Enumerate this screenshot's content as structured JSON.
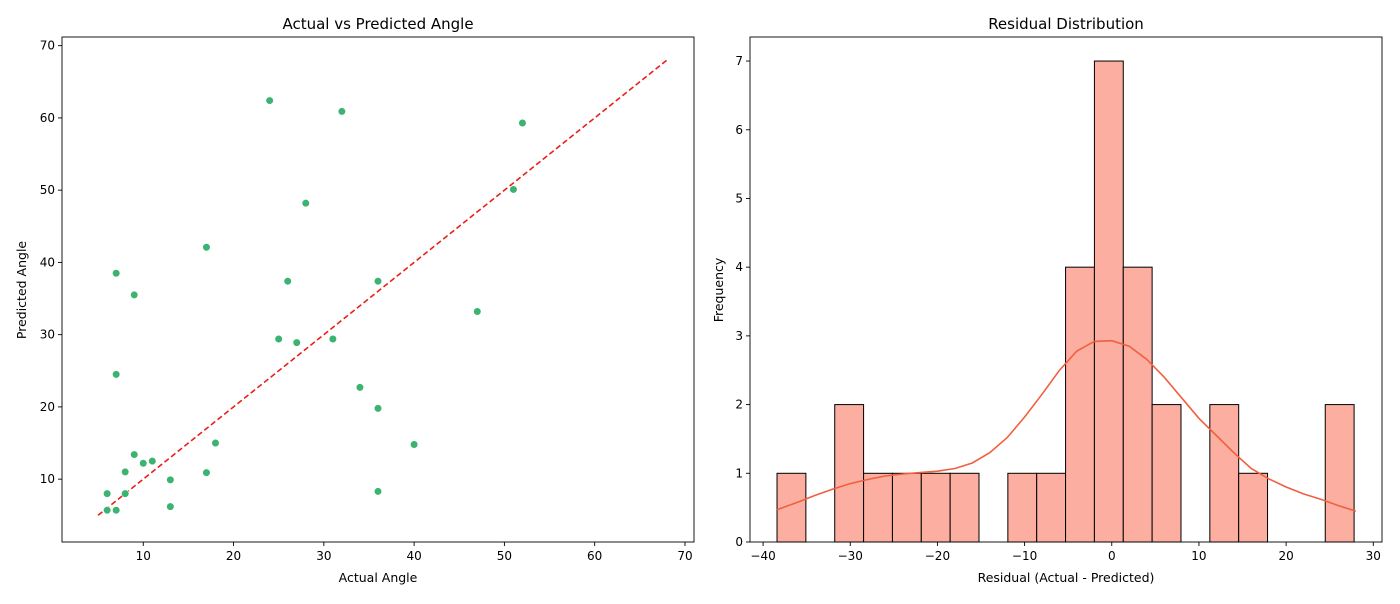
{
  "chart_data": [
    {
      "type": "scatter",
      "title": "Actual vs Predicted Angle",
      "xlabel": "Actual Angle",
      "ylabel": "Predicted Angle",
      "xlim": [
        1,
        71
      ],
      "ylim": [
        1.3,
        71.2
      ],
      "xticks": [
        10,
        20,
        30,
        40,
        50,
        60,
        70
      ],
      "yticks": [
        10,
        20,
        30,
        40,
        50,
        60,
        70
      ],
      "point_color": "#3cb371",
      "reference_line": {
        "x": [
          5,
          68
        ],
        "y": [
          5,
          68
        ],
        "color": "#e8201a",
        "style": "dashed"
      },
      "points": [
        [
          24,
          62.4
        ],
        [
          32,
          60.9
        ],
        [
          52,
          59.3
        ],
        [
          51,
          50.1
        ],
        [
          28,
          48.2
        ],
        [
          17,
          42.1
        ],
        [
          7,
          38.5
        ],
        [
          26,
          37.4
        ],
        [
          36,
          37.4
        ],
        [
          9,
          35.5
        ],
        [
          47,
          33.2
        ],
        [
          25,
          29.4
        ],
        [
          31,
          29.4
        ],
        [
          27,
          28.9
        ],
        [
          7,
          24.5
        ],
        [
          34,
          22.7
        ],
        [
          36,
          19.8
        ],
        [
          18,
          15.0
        ],
        [
          40,
          14.8
        ],
        [
          9,
          13.4
        ],
        [
          11,
          12.5
        ],
        [
          10,
          12.2
        ],
        [
          8,
          11.0
        ],
        [
          17,
          10.9
        ],
        [
          13,
          9.9
        ],
        [
          36,
          8.3
        ],
        [
          6,
          8.0
        ],
        [
          8,
          8.0
        ],
        [
          13,
          6.2
        ],
        [
          6,
          5.7
        ],
        [
          7,
          5.7
        ]
      ]
    },
    {
      "type": "bar",
      "title": "Residual Distribution",
      "xlabel": "Residual (Actual - Predicted)",
      "ylabel": "Frequency",
      "xlim": [
        -41.5,
        31
      ],
      "ylim": [
        0,
        7.35
      ],
      "xticks": [
        -40,
        -30,
        -20,
        -10,
        0,
        10,
        20,
        30
      ],
      "yticks": [
        0,
        1,
        2,
        3,
        4,
        5,
        6,
        7
      ],
      "bar_color": "#fcaea0",
      "kde_color": "#f06040",
      "bins": {
        "start": -38.4,
        "width": 3.31,
        "counts": [
          1,
          0,
          2,
          1,
          1,
          1,
          1,
          0,
          1,
          1,
          4,
          7,
          4,
          2,
          0,
          2,
          1,
          0,
          0,
          2
        ]
      },
      "kde": {
        "x": [
          -38.4,
          -36,
          -34,
          -32,
          -30,
          -28,
          -26,
          -24,
          -22,
          -20,
          -18,
          -16,
          -14,
          -12,
          -10,
          -8,
          -6,
          -4,
          -2,
          0,
          2,
          4,
          6,
          8,
          10,
          12,
          14,
          16,
          18,
          20,
          22,
          24,
          26,
          28
        ],
        "y": [
          0.47,
          0.58,
          0.68,
          0.77,
          0.85,
          0.91,
          0.96,
          0.99,
          1.01,
          1.03,
          1.07,
          1.15,
          1.3,
          1.52,
          1.82,
          2.15,
          2.5,
          2.78,
          2.92,
          2.93,
          2.85,
          2.66,
          2.4,
          2.1,
          1.8,
          1.55,
          1.3,
          1.07,
          0.92,
          0.8,
          0.7,
          0.62,
          0.53,
          0.45
        ]
      }
    }
  ]
}
